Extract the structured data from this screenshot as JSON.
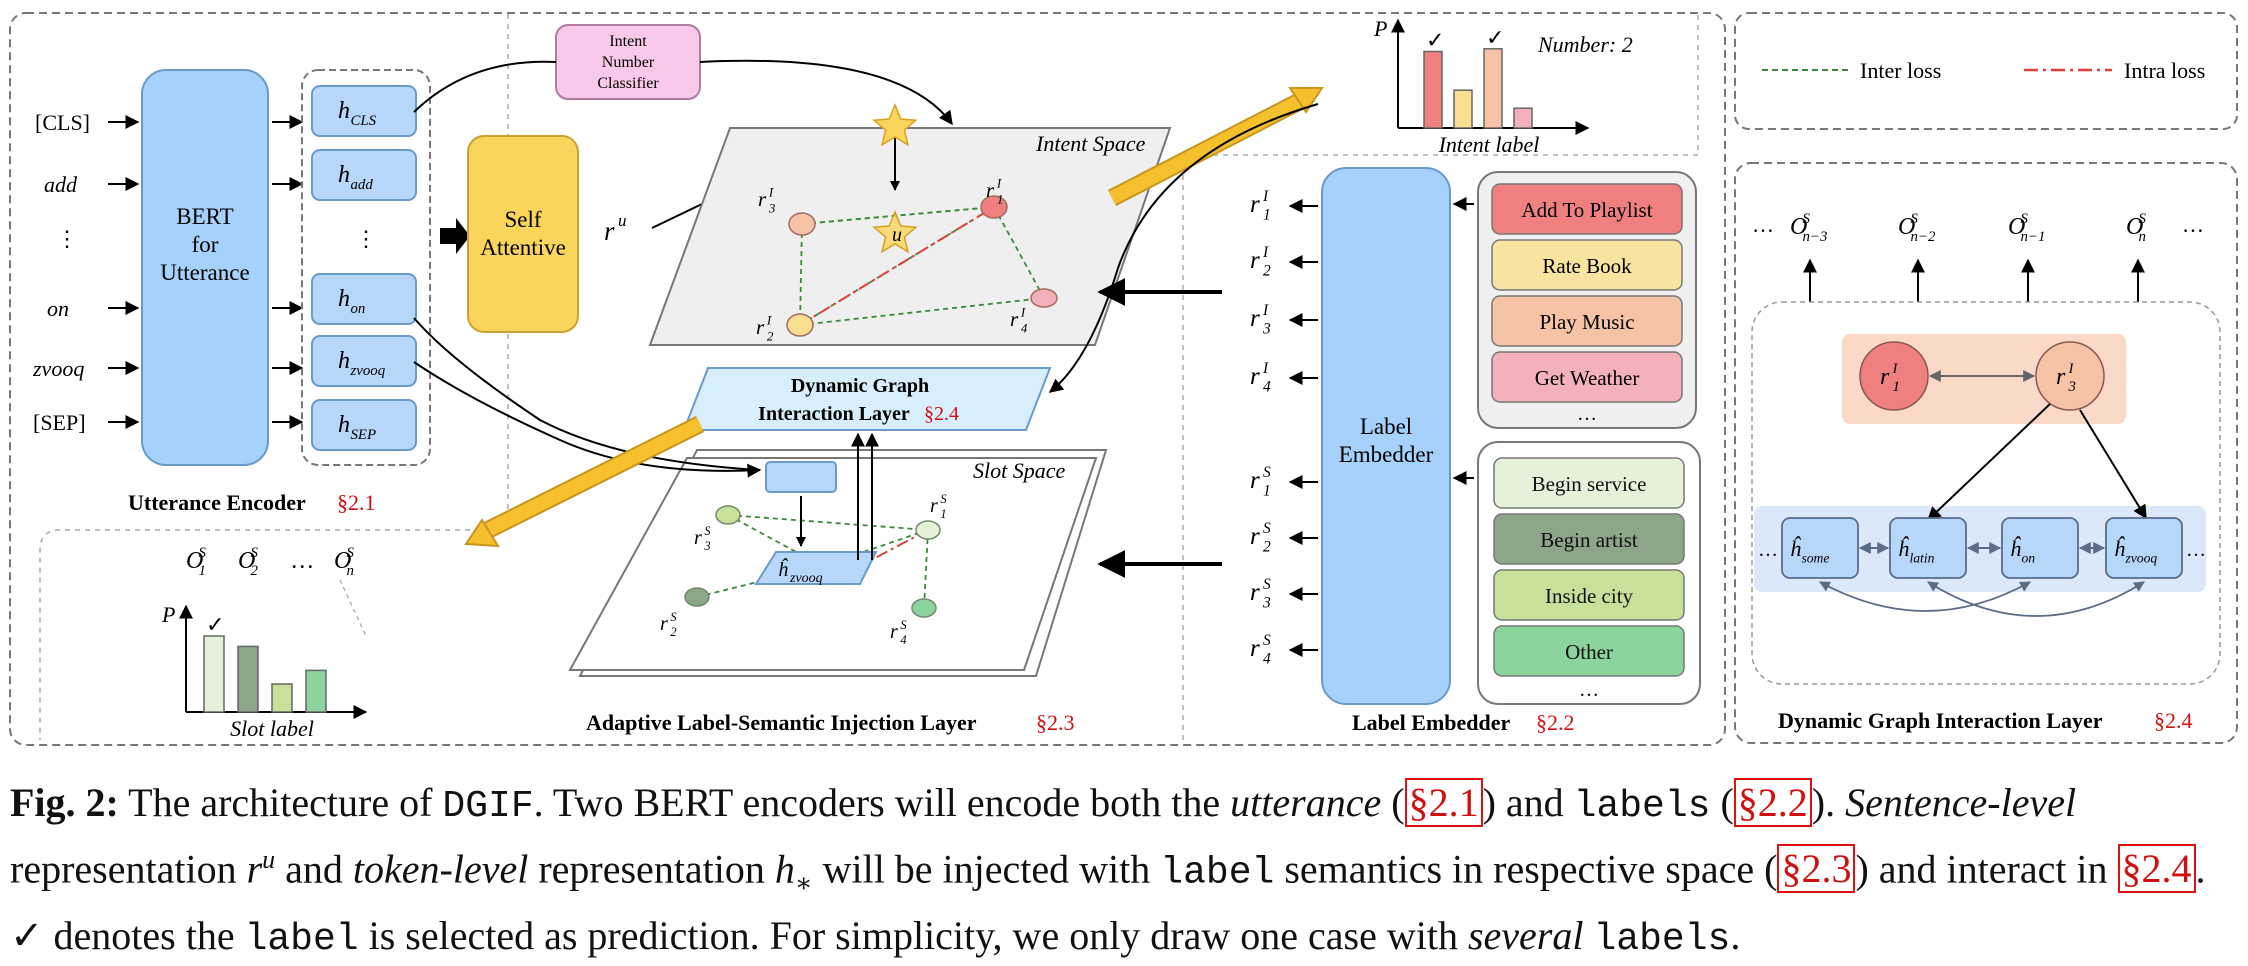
{
  "figure": {
    "utterance_encoder": {
      "tokens": [
        "[CLS]",
        "add",
        "⋮",
        "on",
        "zvooq",
        "[SEP]"
      ],
      "bert_label": [
        "BERT",
        "for",
        "Utterance"
      ],
      "hidden": [
        {
          "base": "h",
          "sub": "CLS"
        },
        {
          "base": "h",
          "sub": "add"
        },
        {
          "base": "⋮",
          "sub": ""
        },
        {
          "base": "h",
          "sub": "on"
        },
        {
          "base": "h",
          "sub": "zvooq"
        },
        {
          "base": "h",
          "sub": "SEP"
        }
      ],
      "title": "Utterance Encoder",
      "ref": "§2.1"
    },
    "self_attentive": [
      "Self",
      "Attentive"
    ],
    "intent_number_classifier": [
      "Intent",
      "Number",
      "Classifier"
    ],
    "sentence_rep": {
      "base": "r",
      "sup": "u"
    },
    "intent_space": {
      "title": "Intent Space",
      "center": "u",
      "nodes": [
        {
          "base": "r",
          "sup": "I",
          "sub": "1",
          "color": "#f08080"
        },
        {
          "base": "r",
          "sup": "I",
          "sub": "2",
          "color": "#f9df8f"
        },
        {
          "base": "r",
          "sup": "I",
          "sub": "3",
          "color": "#f6c3a6"
        },
        {
          "base": "r",
          "sup": "I",
          "sub": "4",
          "color": "#f3b1b9"
        }
      ]
    },
    "slot_space": {
      "title": "Slot Space",
      "hat": "ĥ",
      "hat_sub": "zvooq",
      "nodes": [
        {
          "base": "r",
          "sup": "S",
          "sub": "1",
          "color": "#e6f1d9"
        },
        {
          "base": "r",
          "sup": "S",
          "sub": "2",
          "color": "#8da68a"
        },
        {
          "base": "r",
          "sup": "S",
          "sub": "3",
          "color": "#c7e09a"
        },
        {
          "base": "r",
          "sup": "S",
          "sub": "4",
          "color": "#8cd49e"
        }
      ]
    },
    "dgil_box": [
      "Dynamic Graph",
      "Interaction Layer"
    ],
    "dgil_ref": "§2.4",
    "injection_layer": {
      "title": "Adaptive Label-Semantic Injection Layer",
      "ref": "§2.3"
    },
    "intent_chart": {
      "ylabel": "P",
      "xlabel": "Intent label",
      "number": "Number: 2",
      "check": "✓",
      "bars": [
        {
          "value": 0.85,
          "color": "#f08080",
          "checked": true
        },
        {
          "value": 0.42,
          "color": "#f9df8f",
          "checked": false
        },
        {
          "value": 0.88,
          "color": "#f6c3a6",
          "checked": true
        },
        {
          "value": 0.22,
          "color": "#f3b1b9",
          "checked": false
        }
      ]
    },
    "slot_chart": {
      "ylabel": "P",
      "xlabel": "Slot label",
      "check": "✓",
      "outputs": [
        {
          "base": "O",
          "sup": "S",
          "sub": "1"
        },
        {
          "base": "O",
          "sup": "S",
          "sub": "2"
        },
        {
          "base": "…",
          "sup": "",
          "sub": ""
        },
        {
          "base": "O",
          "sup": "S",
          "sub": "n"
        }
      ],
      "bars": [
        {
          "value": 0.95,
          "color": "#e6f1d9",
          "checked": true
        },
        {
          "value": 0.82,
          "color": "#8da68a",
          "checked": false
        },
        {
          "value": 0.35,
          "color": "#c7e09a",
          "checked": false
        },
        {
          "value": 0.52,
          "color": "#8cd49e",
          "checked": false
        }
      ]
    },
    "label_embedder": {
      "title": "Label Embedder",
      "ref": "§2.2",
      "center": [
        "Label",
        "Embedder"
      ],
      "intent_reps": [
        {
          "base": "r",
          "sup": "I",
          "sub": "1"
        },
        {
          "base": "r",
          "sup": "I",
          "sub": "2"
        },
        {
          "base": "r",
          "sup": "I",
          "sub": "3"
        },
        {
          "base": "r",
          "sup": "I",
          "sub": "4"
        }
      ],
      "slot_reps": [
        {
          "base": "r",
          "sup": "S",
          "sub": "1"
        },
        {
          "base": "r",
          "sup": "S",
          "sub": "2"
        },
        {
          "base": "r",
          "sup": "S",
          "sub": "3"
        },
        {
          "base": "r",
          "sup": "S",
          "sub": "4"
        }
      ],
      "intent_labels": [
        {
          "text": "Add To Playlist",
          "color": "#f08080"
        },
        {
          "text": "Rate Book",
          "color": "#f9e3a0"
        },
        {
          "text": "Play Music",
          "color": "#f6c3a6"
        },
        {
          "text": "Get Weather",
          "color": "#f3b1b9"
        }
      ],
      "slot_labels": [
        {
          "text": "Begin service",
          "color": "#e6f1d9"
        },
        {
          "text": "Begin artist",
          "color": "#8da68a"
        },
        {
          "text": "Inside city",
          "color": "#c7e09a"
        },
        {
          "text": "Other",
          "color": "#8cd49e"
        }
      ],
      "ellipsis": "…"
    },
    "legend": {
      "inter": "Inter loss",
      "intra": "Intra loss"
    },
    "dgil_panel": {
      "title": "Dynamic Graph Interaction Layer",
      "ref": "§2.4",
      "ellipsis": "…",
      "outputs": [
        {
          "base": "O",
          "sup": "S",
          "sub": "n−3"
        },
        {
          "base": "O",
          "sup": "S",
          "sub": "n−2"
        },
        {
          "base": "O",
          "sup": "S",
          "sub": "n−1"
        },
        {
          "base": "O",
          "sup": "S",
          "sub": "n"
        }
      ],
      "intent_nodes": [
        {
          "base": "r",
          "sup": "I",
          "sub": "1"
        },
        {
          "base": "r",
          "sup": "I",
          "sub": "3"
        }
      ],
      "tokens": [
        {
          "base": "ĥ",
          "sub": "some"
        },
        {
          "base": "ĥ",
          "sub": "latin"
        },
        {
          "base": "ĥ",
          "sub": "on"
        },
        {
          "base": "ĥ",
          "sub": "zvooq"
        }
      ]
    }
  },
  "caption": {
    "fig": "Fig. 2:",
    "t1": " The architecture of ",
    "dgif": "DGIF",
    "t2": ". Two BERT encoders will encode both the ",
    "utterance": "utterance",
    "t3": " (",
    "r1": "§2.1",
    "t4": ") and ",
    "labels": "labels",
    "t5": " (",
    "r2": "§2.2",
    "t6": "). ",
    "sentence_level": "Sentence-level",
    "t7": " representation ",
    "ru": "r",
    "ru_sup": "u",
    "t8": " and ",
    "token_level": "token-level",
    "t9": " representation ",
    "hstar": "h",
    "hstar_sub": "∗",
    "t10": " will be injected with ",
    "label": "label",
    "t11": " semantics in respective space (",
    "r3": "§2.3",
    "t12": ") and interact in ",
    "r4": "§2.4",
    "t13": ". ✓ denotes the ",
    "label2": "label",
    "t14": " is selected as prediction. For simplicity, we only draw one case with ",
    "several": "several",
    "t15": " ",
    "labels2": "labels",
    "t16": "."
  }
}
